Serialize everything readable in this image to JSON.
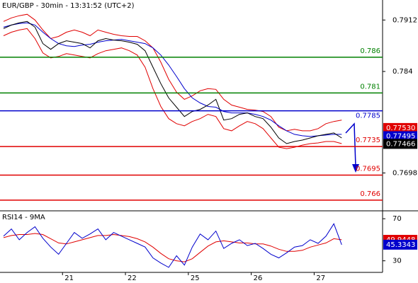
{
  "chart_data": [
    {
      "type": "line",
      "title": "EUR/GBP - 30min - 13:31:52 (UTC+2)",
      "x": [
        0,
        1,
        2,
        3,
        4,
        5,
        6,
        7,
        8,
        9,
        10,
        11,
        12,
        13,
        14,
        15,
        16,
        17,
        18,
        19,
        20,
        21,
        22,
        23,
        24,
        25,
        26,
        27,
        28,
        29,
        30,
        31,
        32,
        33,
        34,
        35,
        36,
        37,
        38,
        39,
        40,
        41,
        42,
        43
      ],
      "xlim": [
        0,
        48.2
      ],
      "ylim": [
        0.7645,
        0.794
      ],
      "yticks": [
        0.7912,
        0.784,
        0.7698
      ],
      "series": [
        {
          "color": "#e00000",
          "values": [
            0.791,
            0.7915,
            0.7918,
            0.792,
            0.7912,
            0.7898,
            0.7886,
            0.7889,
            0.7895,
            0.7898,
            0.7895,
            0.789,
            0.7898,
            0.7895,
            0.7892,
            0.789,
            0.7889,
            0.7889,
            0.7883,
            0.7873,
            0.7853,
            0.7829,
            0.7811,
            0.7801,
            0.7806,
            0.7813,
            0.7816,
            0.7815,
            0.7801,
            0.7793,
            0.779,
            0.7787,
            0.7786,
            0.7784,
            0.7777,
            0.7762,
            0.7757,
            0.7759,
            0.7757,
            0.7757,
            0.776,
            0.7767,
            0.777,
            0.7772
          ]
        },
        {
          "color": "#e00000",
          "values": [
            0.789,
            0.7895,
            0.7898,
            0.79,
            0.7886,
            0.7866,
            0.7859,
            0.7861,
            0.7865,
            0.7863,
            0.7861,
            0.7859,
            0.7865,
            0.7869,
            0.7871,
            0.7873,
            0.7869,
            0.7863,
            0.7846,
            0.7816,
            0.7791,
            0.7774,
            0.7767,
            0.7764,
            0.777,
            0.7774,
            0.778,
            0.7777,
            0.776,
            0.7757,
            0.7764,
            0.777,
            0.7767,
            0.776,
            0.7747,
            0.7734,
            0.7732,
            0.7734,
            0.7737,
            0.7739,
            0.774,
            0.7742,
            0.7742,
            0.7739
          ]
        },
        {
          "color": "#0000cc",
          "values": [
            0.7902,
            0.7905,
            0.7907,
            0.7908,
            0.7905,
            0.7895,
            0.7886,
            0.7879,
            0.7876,
            0.7875,
            0.7877,
            0.7878,
            0.7881,
            0.7883,
            0.7884,
            0.7885,
            0.7883,
            0.7881,
            0.7879,
            0.7873,
            0.7863,
            0.7849,
            0.7833,
            0.7816,
            0.7803,
            0.7796,
            0.7791,
            0.779,
            0.7784,
            0.7782,
            0.7782,
            0.7782,
            0.778,
            0.7777,
            0.7772,
            0.7764,
            0.7757,
            0.7752,
            0.775,
            0.7749,
            0.775,
            0.7751,
            0.7752,
            0.7752
          ]
        },
        {
          "color": "#000000",
          "values": [
            0.79,
            0.7905,
            0.7908,
            0.791,
            0.7902,
            0.7879,
            0.7871,
            0.7879,
            0.7883,
            0.7881,
            0.7879,
            0.7873,
            0.7883,
            0.7886,
            0.7884,
            0.7883,
            0.7881,
            0.7878,
            0.7869,
            0.7846,
            0.7823,
            0.7803,
            0.779,
            0.7777,
            0.7784,
            0.7787,
            0.7793,
            0.7801,
            0.7772,
            0.7774,
            0.778,
            0.7782,
            0.7777,
            0.7774,
            0.7762,
            0.7747,
            0.7739,
            0.7742,
            0.7744,
            0.7747,
            0.775,
            0.7752,
            0.7754,
            0.7747
          ]
        }
      ],
      "levels": [
        {
          "value": 0.786,
          "color": "#008000"
        },
        {
          "value": 0.781,
          "color": "#008000"
        },
        {
          "value": 0.7785,
          "color": "#0000cc"
        },
        {
          "value": 0.7735,
          "color": "#e00000"
        },
        {
          "value": 0.7695,
          "color": "#e00000"
        },
        {
          "value": 0.766,
          "color": "#e00000"
        }
      ],
      "price_tags": [
        {
          "value": 0.7753,
          "label": "0.77530",
          "color": "#e00000"
        },
        {
          "value": 0.77495,
          "label": "0.77495",
          "color": "#0000cc"
        },
        {
          "value": 0.77466,
          "label": "0.77466",
          "color": "#000000"
        }
      ]
    },
    {
      "type": "line",
      "title": "RSI14 - 9MA",
      "x": [
        0,
        1,
        2,
        3,
        4,
        5,
        6,
        7,
        8,
        9,
        10,
        11,
        12,
        13,
        14,
        15,
        16,
        17,
        18,
        19,
        20,
        21,
        22,
        23,
        24,
        25,
        26,
        27,
        28,
        29,
        30,
        31,
        32,
        33,
        34,
        35,
        36,
        37,
        38,
        39,
        40,
        41,
        42,
        43
      ],
      "xlim": [
        0,
        48.2
      ],
      "xticks": [
        {
          "value": 7.5,
          "label": "21"
        },
        {
          "value": 15.5,
          "label": "22"
        },
        {
          "value": 23.5,
          "label": "25"
        },
        {
          "value": 31.5,
          "label": "26"
        },
        {
          "value": 39.5,
          "label": "27"
        }
      ],
      "ylim": [
        19,
        77.5
      ],
      "yticks": [
        70,
        30
      ],
      "series": [
        {
          "color": "#e00000",
          "values": [
            52,
            54,
            55,
            55,
            56,
            55,
            51,
            47,
            46,
            48,
            50,
            52,
            54,
            54,
            55,
            54,
            53,
            51,
            48,
            43,
            37,
            32,
            30,
            29,
            32,
            38,
            44,
            48,
            49,
            48,
            47,
            47,
            46,
            46,
            44,
            41,
            39,
            39,
            40,
            43,
            45,
            47,
            51,
            50
          ]
        },
        {
          "color": "#0000cc",
          "values": [
            53.4,
            60.3,
            50.0,
            56.9,
            62.4,
            51.4,
            43.1,
            36.2,
            46.6,
            56.9,
            51.4,
            55.5,
            60.3,
            50.0,
            56.9,
            53.4,
            50.0,
            46.6,
            43.1,
            32.8,
            27.9,
            23.8,
            34.8,
            25.9,
            43.1,
            55.5,
            50.0,
            58.3,
            41.7,
            46.6,
            50.0,
            44.5,
            46.6,
            41.7,
            36.2,
            32.8,
            37.6,
            43.1,
            44.5,
            50.0,
            46.6,
            53.4,
            65.2,
            45.3
          ]
        }
      ],
      "price_tags": [
        {
          "value": 49.9448,
          "label": "49.9448",
          "color": "#e00000"
        },
        {
          "value": 45.3343,
          "label": "45.3343",
          "color": "#0000cc"
        }
      ]
    }
  ]
}
